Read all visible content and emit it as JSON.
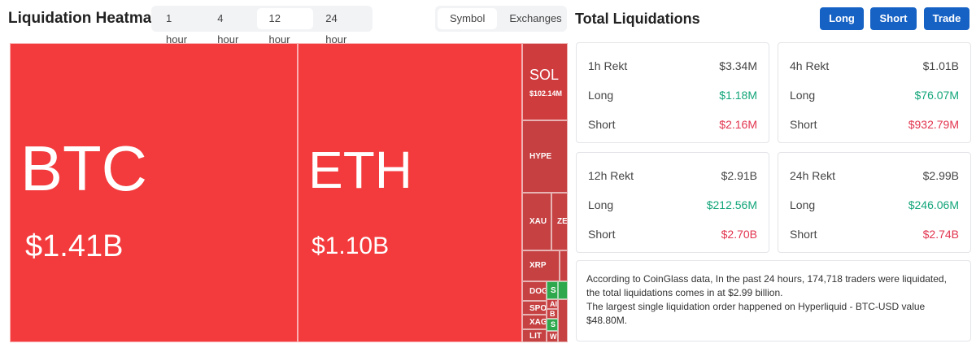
{
  "header": {
    "title": "Liquidation Heatmap",
    "time_tabs": [
      "1 hour",
      "4 hour",
      "12 hour",
      "24 hour"
    ],
    "view_tabs": [
      "Symbol",
      "Exchanges"
    ],
    "panel_title": "Total Liquidations",
    "buttons": [
      "Long",
      "Short",
      "Trade"
    ]
  },
  "heatmap": {
    "tiles": [
      {
        "symbol": "BTC",
        "value": "$1.41B"
      },
      {
        "symbol": "ETH",
        "value": "$1.10B"
      },
      {
        "symbol": "SOL",
        "value": "$102.14M"
      },
      {
        "symbol": "HYPE"
      },
      {
        "symbol": "XAU"
      },
      {
        "symbol": "ZE"
      },
      {
        "symbol": "XRP"
      },
      {
        "symbol": "DOG"
      },
      {
        "symbol": "SPO"
      },
      {
        "symbol": "XAG"
      },
      {
        "symbol": "LIT"
      },
      {
        "symbol": "S"
      },
      {
        "symbol": "AI"
      },
      {
        "symbol": "B"
      },
      {
        "symbol": "S"
      },
      {
        "symbol": "W"
      }
    ]
  },
  "cards": [
    {
      "title": "1h Rekt",
      "total": "$3.34M",
      "long_label": "Long",
      "long": "$1.18M",
      "short_label": "Short",
      "short": "$2.16M"
    },
    {
      "title": "4h Rekt",
      "total": "$1.01B",
      "long_label": "Long",
      "long": "$76.07M",
      "short_label": "Short",
      "short": "$932.79M"
    },
    {
      "title": "12h Rekt",
      "total": "$2.91B",
      "long_label": "Long",
      "long": "$212.56M",
      "short_label": "Short",
      "short": "$2.70B"
    },
    {
      "title": "24h Rekt",
      "total": "$2.99B",
      "long_label": "Long",
      "long": "$246.06M",
      "short_label": "Short",
      "short": "$2.74B"
    }
  ],
  "info": [
    "According to CoinGlass data, In the past 24 hours, 174,718 traders were liquidated, the total liquidations comes in at $2.99 billion.",
    "The largest single liquidation order happened on Hyperliquid - BTC-USD value $48.80M."
  ]
}
